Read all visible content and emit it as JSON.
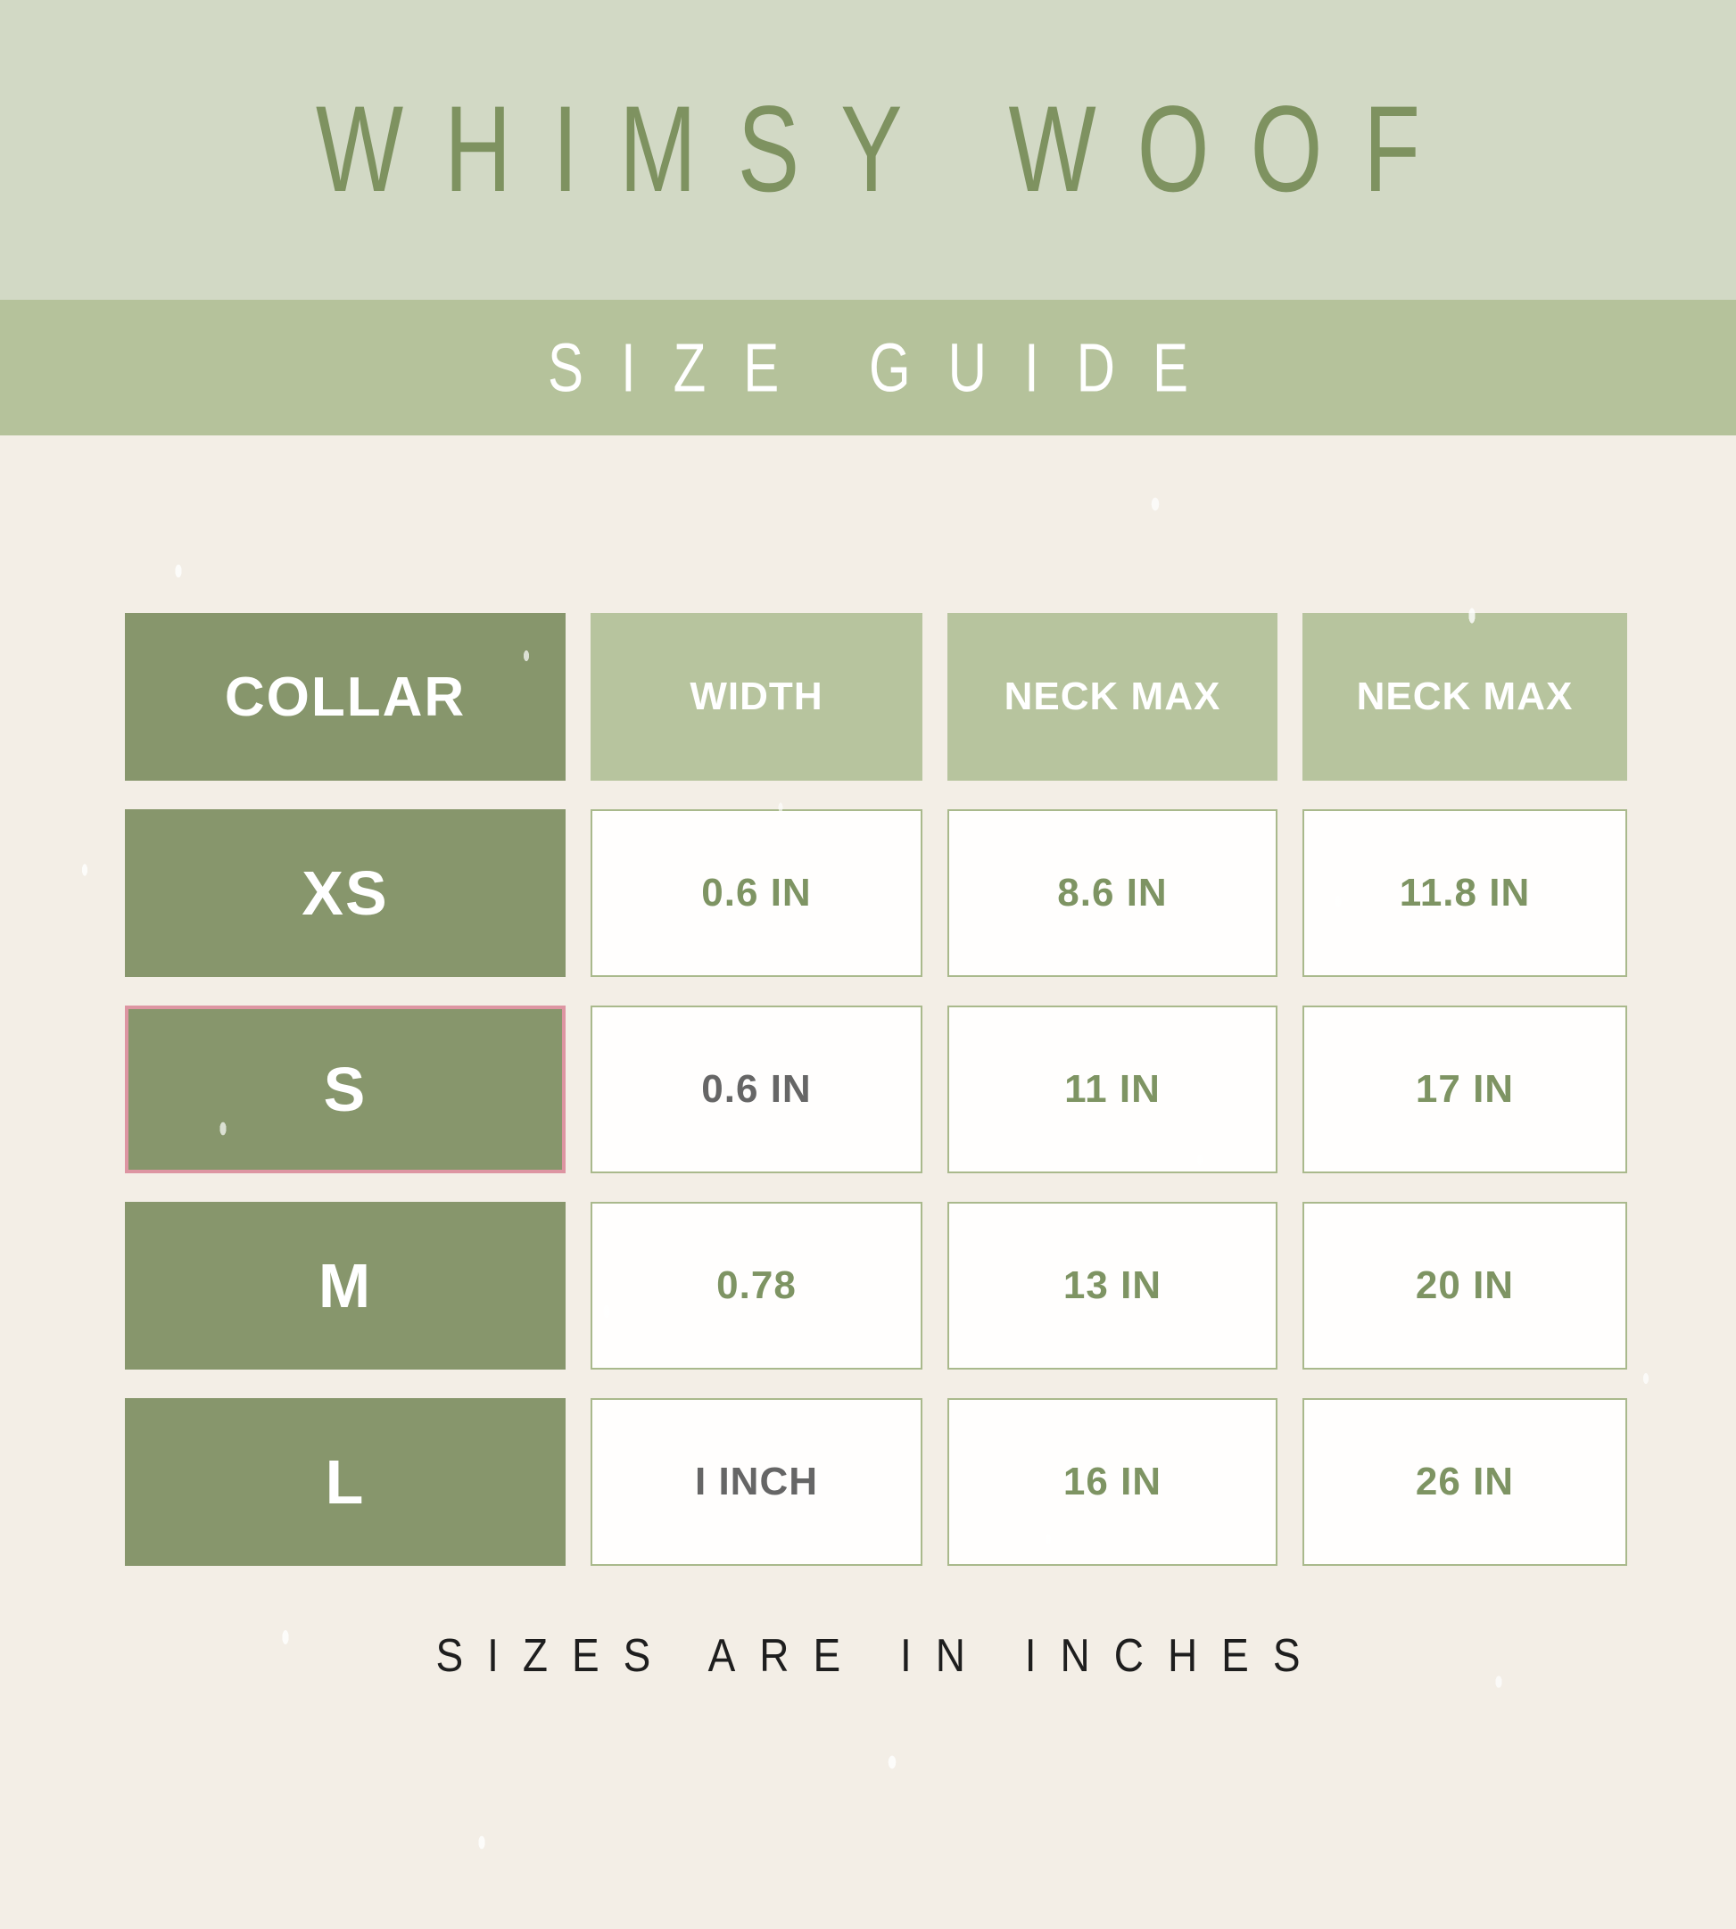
{
  "header": {
    "brand": "WHIMSY WOOF",
    "banner": "SIZE GUIDE"
  },
  "table": {
    "columns": [
      {
        "label": "COLLAR"
      },
      {
        "label": "WIDTH"
      },
      {
        "label": "NECK MAX"
      },
      {
        "label": "NECK MAX"
      }
    ],
    "rows": [
      {
        "size": "XS",
        "highlighted": false,
        "cells": [
          {
            "text": "0.6 IN"
          },
          {
            "text": "8.6 IN"
          },
          {
            "text": "11.8 IN"
          }
        ]
      },
      {
        "size": "S",
        "highlighted": true,
        "cells": [
          {
            "text": "0.6 IN"
          },
          {
            "text": "11 IN"
          },
          {
            "text": "17 IN"
          }
        ]
      },
      {
        "size": "M",
        "highlighted": false,
        "cells": [
          {
            "text": "0.78"
          },
          {
            "text": "13 IN"
          },
          {
            "text": "20 IN"
          }
        ]
      },
      {
        "size": "L",
        "highlighted": false,
        "cells": [
          {
            "text": "I INCH"
          },
          {
            "text": "16 IN"
          },
          {
            "text": "26 IN"
          }
        ]
      }
    ]
  },
  "footer": {
    "note": "SIZES ARE IN INCHES"
  },
  "colors": {
    "top_band": "#d2d9c5",
    "sub_band": "#b5c29b",
    "background": "#f3eee6",
    "dark_green_cell": "#87966c",
    "light_green_cell": "#b7c49e",
    "value_cell_border": "#a9b98c",
    "value_text_green": "#7e9463",
    "value_text_gray": "#666666",
    "highlight_border_pink": "#dd95a2",
    "brand_text": "#7e9260",
    "footer_text": "#1e1e1e"
  },
  "chart_data": {
    "type": "table",
    "title": "WHIMSY WOOF SIZE GUIDE",
    "columns": [
      "COLLAR",
      "WIDTH",
      "NECK MAX",
      "NECK MAX"
    ],
    "rows": [
      [
        "XS",
        "0.6 IN",
        "8.6 IN",
        "11.8 IN"
      ],
      [
        "S",
        "0.6 IN",
        "11 IN",
        "17 IN"
      ],
      [
        "M",
        "0.78",
        "13 IN",
        "20 IN"
      ],
      [
        "L",
        "I INCH",
        "16 IN",
        "26 IN"
      ]
    ],
    "note": "SIZES ARE IN INCHES",
    "units": "inches"
  }
}
